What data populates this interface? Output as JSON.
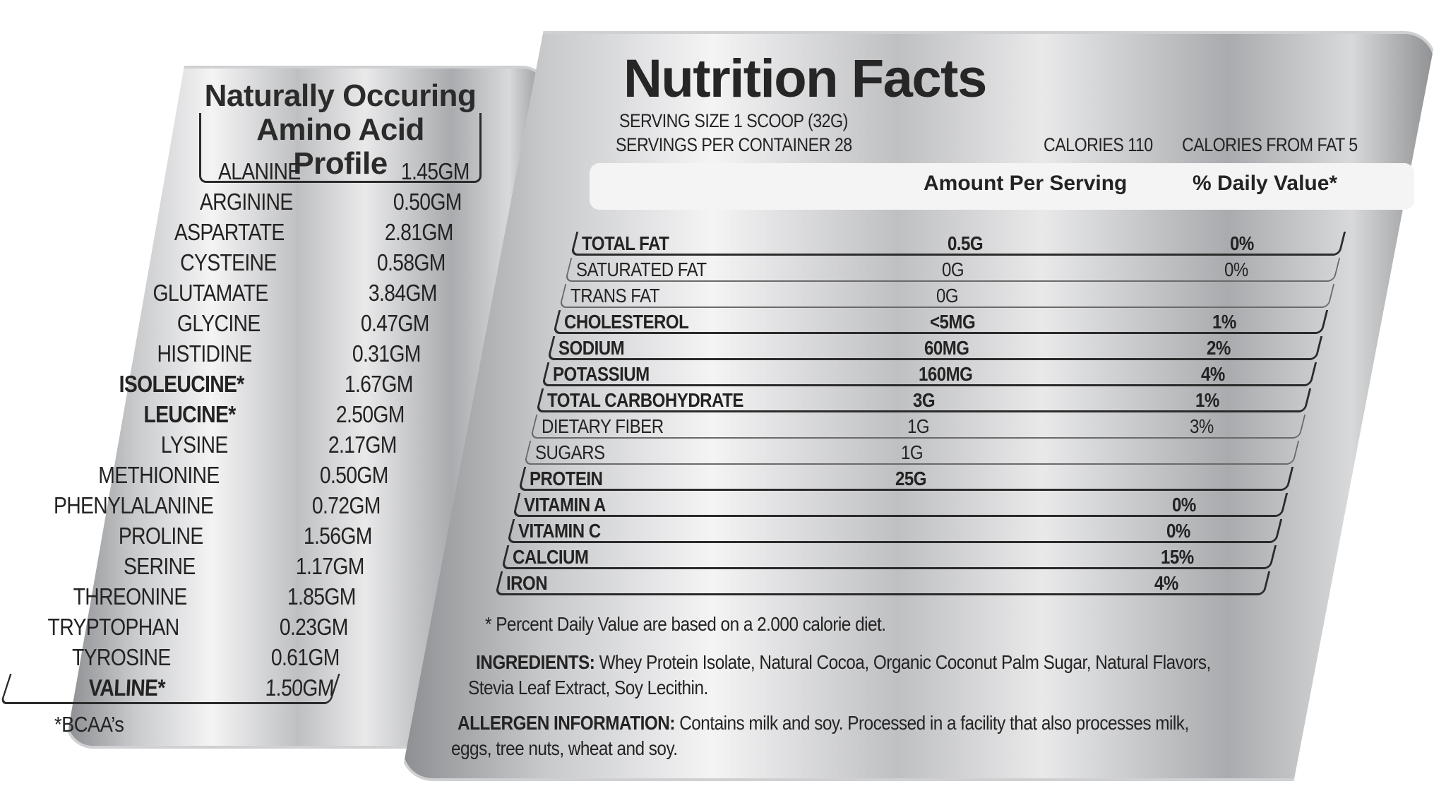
{
  "amino": {
    "title_line1": "Naturally Occuring",
    "title_line2": "Amino Acid Profile",
    "rows": [
      {
        "name": "ALANINE",
        "value": "1.45GM"
      },
      {
        "name": "ARGININE",
        "value": "0.50GM"
      },
      {
        "name": "ASPARTATE",
        "value": "2.81GM"
      },
      {
        "name": "CYSTEINE",
        "value": "0.58GM"
      },
      {
        "name": "GLUTAMATE",
        "value": "3.84GM"
      },
      {
        "name": "GLYCINE",
        "value": "0.47GM"
      },
      {
        "name": "HISTIDINE",
        "value": "0.31GM"
      },
      {
        "name": "ISOLEUCINE*",
        "value": "1.67GM"
      },
      {
        "name": "LEUCINE*",
        "value": "2.50GM"
      },
      {
        "name": "LYSINE",
        "value": "2.17GM"
      },
      {
        "name": "METHIONINE",
        "value": "0.50GM"
      },
      {
        "name": "PHENYLALANINE",
        "value": "0.72GM"
      },
      {
        "name": "PROLINE",
        "value": "1.56GM"
      },
      {
        "name": "SERINE",
        "value": "1.17GM"
      },
      {
        "name": "THREONINE",
        "value": "1.85GM"
      },
      {
        "name": "TRYPTOPHAN",
        "value": "0.23GM"
      },
      {
        "name": "TYROSINE",
        "value": "0.61GM"
      },
      {
        "name": "VALINE*",
        "value": "1.50GM"
      }
    ],
    "footnote": "*BCAA’s"
  },
  "nutrition": {
    "title": "Nutrition Facts",
    "serving_size": "SERVING SIZE 1 SCOOP (32G)",
    "servings_per_container": "SERVINGS PER CONTAINER 28",
    "calories": "CALORIES 110",
    "calories_from_fat": "CALORIES FROM FAT 5",
    "header_amount": "Amount Per Serving",
    "header_dv": "% Daily Value*",
    "rows": [
      {
        "name": "TOTAL FAT",
        "amount": "0.5G",
        "dv": "0%"
      },
      {
        "name": "SATURATED FAT",
        "amount": "0G",
        "dv": "0%"
      },
      {
        "name": "TRANS FAT",
        "amount": "0G",
        "dv": ""
      },
      {
        "name": "CHOLESTEROL",
        "amount": "<5MG",
        "dv": "1%"
      },
      {
        "name": "SODIUM",
        "amount": "60MG",
        "dv": "2%"
      },
      {
        "name": "POTASSIUM",
        "amount": "160MG",
        "dv": "4%"
      },
      {
        "name": "TOTAL CARBOHYDRATE",
        "amount": "3G",
        "dv": "1%"
      },
      {
        "name": "DIETARY FIBER",
        "amount": "1G",
        "dv": "3%"
      },
      {
        "name": "SUGARS",
        "amount": "1G",
        "dv": ""
      },
      {
        "name": "PROTEIN",
        "amount": "25G",
        "dv": ""
      },
      {
        "name": "VITAMIN A",
        "amount": "",
        "dv": "0%"
      },
      {
        "name": "VITAMIN C",
        "amount": "",
        "dv": "0%"
      },
      {
        "name": "CALCIUM",
        "amount": "",
        "dv": "15%"
      },
      {
        "name": "IRON",
        "amount": "",
        "dv": "4%"
      }
    ],
    "dv_note": "* Percent Daily Value are based on a 2.000 calorie diet.",
    "ingredients_label": "INGREDIENTS:",
    "ingredients_text_1": "Whey Protein Isolate, Natural Cocoa, Organic Coconut Palm Sugar, Natural Flavors,",
    "ingredients_text_2": "Stevia Leaf Extract, Soy Lecithin.",
    "allergen_label": "ALLERGEN INFORMATION:",
    "allergen_text_1": "Contains milk and soy. Processed in a facility that also processes milk,",
    "allergen_text_2": "eggs, tree nuts, wheat and soy."
  }
}
